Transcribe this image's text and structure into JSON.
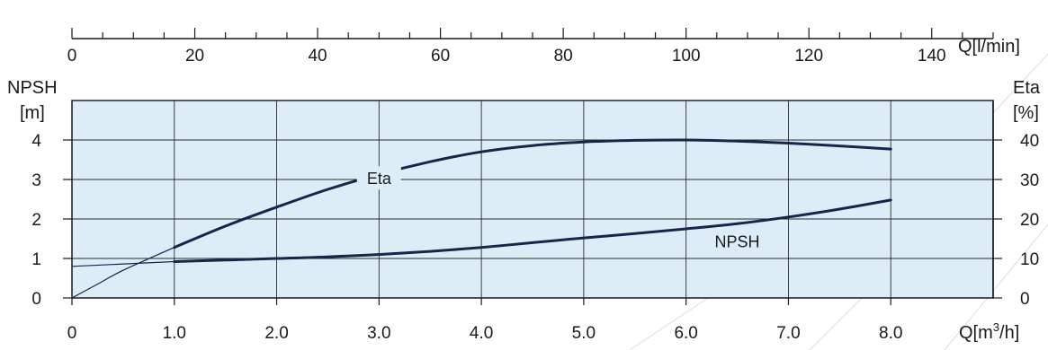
{
  "chart_data": {
    "type": "line",
    "x_bottom": {
      "label": "Q[m³/h]",
      "range": [
        0,
        9.0
      ],
      "ticks": [
        0,
        1.0,
        2.0,
        3.0,
        4.0,
        5.0,
        6.0,
        7.0,
        8.0
      ],
      "tick_labels": [
        "0",
        "1.0",
        "2.0",
        "3.0",
        "4.0",
        "5.0",
        "6.0",
        "7.0",
        "8.0"
      ]
    },
    "x_top": {
      "label": "Q[l/min]",
      "range": [
        0,
        150
      ],
      "ticks": [
        0,
        20,
        40,
        60,
        80,
        100,
        120,
        140
      ],
      "tick_labels": [
        "0",
        "20",
        "40",
        "60",
        "80",
        "100",
        "120",
        "140"
      ],
      "minor_step": 5
    },
    "y_left": {
      "label": "NPSH",
      "unit": "[m]",
      "range": [
        0,
        5
      ],
      "ticks": [
        0,
        1,
        2,
        3,
        4
      ],
      "tick_labels": [
        "0",
        "1",
        "2",
        "3",
        "4"
      ]
    },
    "y_right": {
      "label": "Eta",
      "unit": "[%]",
      "range": [
        0,
        50
      ],
      "ticks": [
        0,
        10,
        20,
        30,
        40
      ],
      "tick_labels": [
        "0",
        "10",
        "20",
        "30",
        "40"
      ]
    },
    "grid": true,
    "series": [
      {
        "name": "Eta",
        "axis": "right",
        "x": [
          0,
          0.25,
          0.5,
          1.0,
          1.5,
          2.0,
          2.5,
          3.0,
          3.5,
          4.0,
          4.5,
          5.0,
          5.5,
          6.0,
          6.5,
          7.0,
          7.5,
          8.0
        ],
        "y": [
          0,
          3.5,
          7,
          12.8,
          18.2,
          23,
          27.5,
          31.3,
          34.5,
          37,
          38.6,
          39.5,
          39.9,
          40,
          39.7,
          39.2,
          38.5,
          37.7
        ],
        "label_at": [
          3.0,
          29.5
        ]
      },
      {
        "name": "NPSH",
        "axis": "left",
        "x": [
          0,
          1.0,
          1.5,
          2.0,
          2.5,
          3.0,
          3.5,
          4.0,
          4.5,
          5.0,
          5.5,
          6.0,
          6.5,
          7.0,
          7.5,
          8.0
        ],
        "y": [
          0.8,
          0.92,
          0.96,
          1.0,
          1.04,
          1.1,
          1.18,
          1.28,
          1.4,
          1.52,
          1.63,
          1.75,
          1.88,
          2.05,
          2.25,
          2.48
        ],
        "label_at": [
          6.5,
          1.35
        ]
      }
    ],
    "colors": {
      "plot_bg": "#dcedf8",
      "curve": "#16254a",
      "grid": "#2a2a2a",
      "axis": "#1a1a1a"
    }
  }
}
